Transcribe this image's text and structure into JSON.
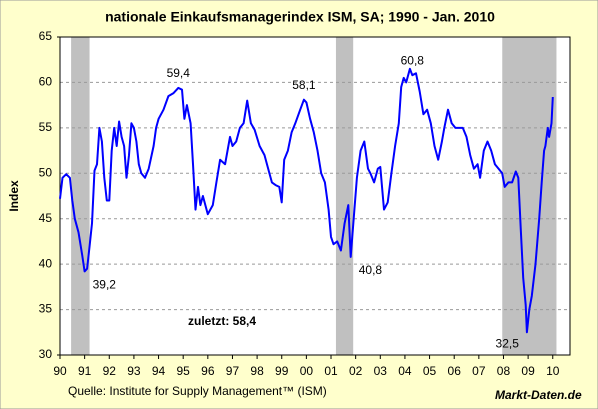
{
  "chart_data": {
    "type": "line",
    "title": "nationale Einkaufsmanagerindex ISM, SA; 1990 - Jan. 2010",
    "y_label": "Index",
    "source": "Quelle: Institute for Supply Management™ (ISM)",
    "brand": "Markt-Daten.de",
    "note": "zuletzt: 58,4",
    "xlim": [
      1990,
      2010.7
    ],
    "ylim": [
      30,
      65
    ],
    "yticks": [
      30,
      35,
      40,
      45,
      50,
      55,
      60,
      65
    ],
    "xticks": [
      {
        "value": 1990,
        "label": "90"
      },
      {
        "value": 1991,
        "label": "91"
      },
      {
        "value": 1992,
        "label": "92"
      },
      {
        "value": 1993,
        "label": "93"
      },
      {
        "value": 1994,
        "label": "94"
      },
      {
        "value": 1995,
        "label": "95"
      },
      {
        "value": 1996,
        "label": "96"
      },
      {
        "value": 1997,
        "label": "97"
      },
      {
        "value": 1998,
        "label": "98"
      },
      {
        "value": 1999,
        "label": "99"
      },
      {
        "value": 2000,
        "label": "00"
      },
      {
        "value": 2001,
        "label": "01"
      },
      {
        "value": 2002,
        "label": "02"
      },
      {
        "value": 2003,
        "label": "03"
      },
      {
        "value": 2004,
        "label": "04"
      },
      {
        "value": 2005,
        "label": "05"
      },
      {
        "value": 2006,
        "label": "06"
      },
      {
        "value": 2007,
        "label": "07"
      },
      {
        "value": 2008,
        "label": "08"
      },
      {
        "value": 2009,
        "label": "09"
      },
      {
        "value": 2010,
        "label": "10"
      }
    ],
    "grid": true,
    "recession_color": "#c0c0c0",
    "recessions": [
      [
        1990.45,
        1991.2
      ],
      [
        2001.2,
        2001.9
      ],
      [
        2007.95,
        2010.15
      ]
    ],
    "color": "#0000ff",
    "x": [
      1990.0,
      1990.1,
      1990.25,
      1990.4,
      1990.5,
      1990.6,
      1990.75,
      1990.9,
      1991.0,
      1991.1,
      1991.2,
      1991.3,
      1991.4,
      1991.5,
      1991.6,
      1991.7,
      1991.8,
      1991.9,
      1992.0,
      1992.1,
      1992.2,
      1992.3,
      1992.4,
      1992.5,
      1992.6,
      1992.7,
      1992.8,
      1992.9,
      1993.0,
      1993.1,
      1993.2,
      1993.3,
      1993.45,
      1993.6,
      1993.8,
      1993.9,
      1994.0,
      1994.2,
      1994.4,
      1994.6,
      1994.8,
      1994.95,
      1995.05,
      1995.15,
      1995.3,
      1995.4,
      1995.5,
      1995.6,
      1995.7,
      1995.8,
      1996.0,
      1996.2,
      1996.35,
      1996.5,
      1996.7,
      1996.9,
      1997.0,
      1997.15,
      1997.3,
      1997.45,
      1997.6,
      1997.75,
      1997.9,
      1998.1,
      1998.3,
      1998.5,
      1998.6,
      1998.75,
      1998.9,
      1999.0,
      1999.1,
      1999.25,
      1999.4,
      1999.55,
      1999.75,
      1999.9,
      2000.0,
      2000.15,
      2000.3,
      2000.45,
      2000.6,
      2000.75,
      2000.9,
      2001.0,
      2001.1,
      2001.25,
      2001.4,
      2001.55,
      2001.7,
      2001.8,
      2001.95,
      2002.05,
      2002.2,
      2002.35,
      2002.5,
      2002.6,
      2002.75,
      2002.9,
      2003.0,
      2003.15,
      2003.3,
      2003.45,
      2003.6,
      2003.75,
      2003.85,
      2003.95,
      2004.05,
      2004.2,
      2004.3,
      2004.45,
      2004.6,
      2004.75,
      2004.9,
      2005.05,
      2005.2,
      2005.35,
      2005.5,
      2005.6,
      2005.75,
      2005.9,
      2006.05,
      2006.2,
      2006.35,
      2006.5,
      2006.65,
      2006.8,
      2006.95,
      2007.05,
      2007.2,
      2007.35,
      2007.5,
      2007.65,
      2007.8,
      2007.95,
      2008.05,
      2008.2,
      2008.35,
      2008.5,
      2008.6,
      2008.7,
      2008.8,
      2008.9,
      2008.95,
      2009.05,
      2009.15,
      2009.3,
      2009.45,
      2009.55,
      2009.65,
      2009.7,
      2009.8,
      2009.85,
      2009.95,
      2010.0
    ],
    "values": [
      47.2,
      49.5,
      49.9,
      49.5,
      47,
      45,
      43.5,
      41,
      39.2,
      39.5,
      42,
      44.5,
      50.3,
      51,
      55,
      53.5,
      49.5,
      47,
      47,
      52.5,
      55,
      53,
      55.7,
      54,
      53,
      49.5,
      52,
      55.5,
      55,
      53.5,
      51,
      50,
      49.5,
      50.5,
      53,
      55,
      56,
      57,
      58.5,
      58.8,
      59.4,
      59.2,
      56,
      57.5,
      55.5,
      51,
      46,
      48.5,
      46.5,
      47.5,
      45.5,
      46.5,
      49,
      51.5,
      51,
      54,
      53,
      53.5,
      55,
      55.5,
      58,
      55.5,
      54.8,
      53,
      52,
      50,
      49,
      48.7,
      48.5,
      46.8,
      51.5,
      52.5,
      54.5,
      55.5,
      57,
      58.1,
      57.8,
      56,
      54.5,
      52.5,
      50,
      49,
      46,
      43,
      42.2,
      42.5,
      41.5,
      44.5,
      46.5,
      40.8,
      46,
      49.5,
      52.5,
      53.5,
      50.5,
      50,
      49,
      50.5,
      50.7,
      46,
      46.8,
      50,
      53,
      55.5,
      59.5,
      60.5,
      60,
      61.5,
      60.8,
      61,
      59,
      56.5,
      57,
      55.5,
      53,
      51.5,
      53.5,
      55,
      57,
      55.5,
      55,
      55,
      55,
      54,
      52,
      50.5,
      51,
      49.5,
      52.5,
      53.5,
      52.5,
      51,
      50.5,
      50,
      48.5,
      49,
      49,
      50.2,
      49.5,
      44,
      38.5,
      35.5,
      32.5,
      35,
      36.5,
      40,
      45,
      49,
      52.5,
      53,
      55,
      54,
      55.5,
      58.4
    ],
    "annotations": [
      {
        "label": "39,2",
        "x": 1991.0,
        "y": 39.2,
        "position": "below-right"
      },
      {
        "label": "59,4",
        "x": 1994.8,
        "y": 59.4,
        "position": "above"
      },
      {
        "label": "58,1",
        "x": 1999.9,
        "y": 58.1,
        "position": "above"
      },
      {
        "label": "40,8",
        "x": 2001.8,
        "y": 40.8,
        "position": "below-right"
      },
      {
        "label": "60,8",
        "x": 2004.3,
        "y": 60.8,
        "position": "above"
      },
      {
        "label": "32,5",
        "x": 2008.95,
        "y": 32.5,
        "position": "below-left"
      }
    ]
  }
}
